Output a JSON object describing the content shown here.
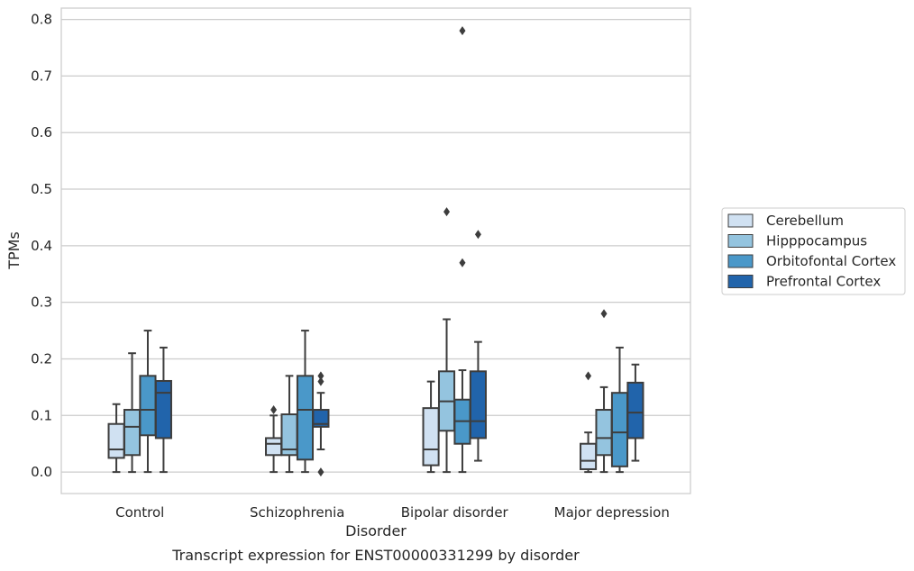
{
  "chart_data": {
    "type": "box",
    "caption": "Transcript expression for ENST00000331299 by disorder",
    "xlabel": "Disorder",
    "ylabel": "TPMs",
    "ylim": [
      -0.038,
      0.82
    ],
    "yticks": [
      "0.0",
      "0.1",
      "0.2",
      "0.3",
      "0.4",
      "0.5",
      "0.6",
      "0.7",
      "0.8"
    ],
    "grid": "horizontal",
    "legend_position": "right",
    "categories": [
      "Control",
      "Schizophrenia",
      "Bipolar disorder",
      "Major depression"
    ],
    "series": [
      {
        "name": "Cerebellum",
        "color": "#d0e1f2",
        "boxes": [
          {
            "whislo": 0.0,
            "q1": 0.025,
            "med": 0.04,
            "q3": 0.085,
            "whishi": 0.12,
            "fliers": []
          },
          {
            "whislo": 0.0,
            "q1": 0.03,
            "med": 0.05,
            "q3": 0.06,
            "whishi": 0.1,
            "fliers": [
              0.11
            ]
          },
          {
            "whislo": 0.0,
            "q1": 0.012,
            "med": 0.04,
            "q3": 0.113,
            "whishi": 0.16,
            "fliers": []
          },
          {
            "whislo": 0.0,
            "q1": 0.005,
            "med": 0.02,
            "q3": 0.05,
            "whishi": 0.07,
            "fliers": [
              0.17
            ]
          }
        ]
      },
      {
        "name": "Hipppocampus",
        "color": "#94c4df",
        "boxes": [
          {
            "whislo": 0.0,
            "q1": 0.03,
            "med": 0.08,
            "q3": 0.11,
            "whishi": 0.21,
            "fliers": []
          },
          {
            "whislo": 0.0,
            "q1": 0.03,
            "med": 0.04,
            "q3": 0.102,
            "whishi": 0.17,
            "fliers": []
          },
          {
            "whislo": 0.0,
            "q1": 0.073,
            "med": 0.125,
            "q3": 0.178,
            "whishi": 0.27,
            "fliers": [
              0.46
            ]
          },
          {
            "whislo": 0.0,
            "q1": 0.03,
            "med": 0.06,
            "q3": 0.11,
            "whishi": 0.15,
            "fliers": [
              0.28
            ]
          }
        ]
      },
      {
        "name": "Orbitofontal Cortex",
        "color": "#4a98c9",
        "boxes": [
          {
            "whislo": 0.0,
            "q1": 0.065,
            "med": 0.11,
            "q3": 0.17,
            "whishi": 0.25,
            "fliers": []
          },
          {
            "whislo": 0.0,
            "q1": 0.022,
            "med": 0.11,
            "q3": 0.17,
            "whishi": 0.25,
            "fliers": []
          },
          {
            "whislo": 0.0,
            "q1": 0.05,
            "med": 0.09,
            "q3": 0.128,
            "whishi": 0.18,
            "fliers": [
              0.37,
              0.78
            ]
          },
          {
            "whislo": 0.0,
            "q1": 0.01,
            "med": 0.07,
            "q3": 0.14,
            "whishi": 0.22,
            "fliers": []
          }
        ]
      },
      {
        "name": "Prefrontal Cortex",
        "color": "#2164ab",
        "boxes": [
          {
            "whislo": 0.0,
            "q1": 0.06,
            "med": 0.14,
            "q3": 0.161,
            "whishi": 0.22,
            "fliers": []
          },
          {
            "whislo": 0.04,
            "q1": 0.08,
            "med": 0.085,
            "q3": 0.11,
            "whishi": 0.14,
            "fliers": [
              0.0,
              0.16,
              0.17
            ]
          },
          {
            "whislo": 0.02,
            "q1": 0.06,
            "med": 0.09,
            "q3": 0.178,
            "whishi": 0.23,
            "fliers": [
              0.42
            ]
          },
          {
            "whislo": 0.02,
            "q1": 0.06,
            "med": 0.105,
            "q3": 0.158,
            "whishi": 0.19,
            "fliers": []
          }
        ]
      }
    ]
  }
}
